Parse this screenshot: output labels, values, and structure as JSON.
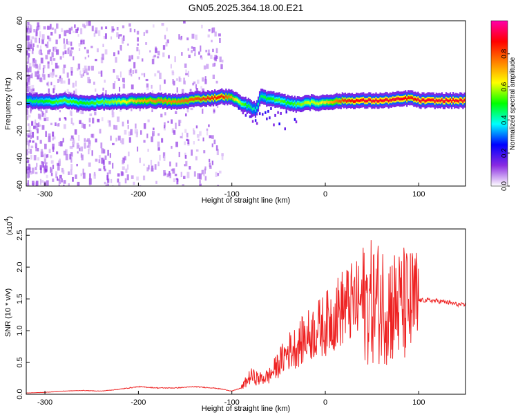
{
  "title": "GN05.2025.364.18.00.E21",
  "chart_data": [
    {
      "type": "heatmap",
      "xlabel": "Height of straight line (km)",
      "ylabel": "Frequency (Hz)",
      "xlim": [
        -320,
        150
      ],
      "ylim": [
        -60,
        60
      ],
      "x_ticks": [
        "-300",
        "-200",
        "-100",
        "0",
        "100"
      ],
      "y_ticks": [
        "60",
        "40",
        "20",
        "0",
        "-20",
        "-40",
        "-60"
      ],
      "colorbar": {
        "label": "Normalized spectral amplitude",
        "ticks": [
          "0.0",
          "0.2",
          "0.4",
          "0.6",
          "0.8"
        ],
        "range": [
          0,
          1
        ],
        "colors": [
          "#ffffff",
          "#8a2be2",
          "#0000ff",
          "#00ffff",
          "#00ff00",
          "#ffff00",
          "#ff8000",
          "#ff0000",
          "#ff00aa"
        ]
      },
      "ridge": {
        "x": [
          -320,
          -300,
          -280,
          -260,
          -240,
          -220,
          -200,
          -180,
          -160,
          -140,
          -120,
          -110,
          -100,
          -90,
          -80,
          -75,
          -70,
          -60,
          -50,
          -40,
          -30,
          -20,
          -10,
          0,
          20,
          40,
          60,
          80,
          90,
          100,
          120,
          150
        ],
        "freq": [
          2,
          1,
          2,
          0,
          1,
          1,
          2,
          2,
          1,
          3,
          4,
          5,
          4,
          0,
          -3,
          -5,
          5,
          3,
          2,
          0,
          -1,
          1,
          0,
          1,
          2,
          2,
          2,
          3,
          4,
          2,
          2,
          2
        ],
        "amp": [
          0.45,
          0.5,
          0.55,
          0.5,
          0.55,
          0.6,
          0.7,
          0.75,
          0.75,
          0.8,
          0.85,
          0.85,
          0.7,
          0.55,
          0.45,
          0.4,
          0.45,
          0.5,
          0.55,
          0.5,
          0.55,
          0.6,
          0.6,
          0.65,
          0.85,
          0.9,
          0.9,
          0.9,
          0.85,
          0.9,
          0.9,
          0.9
        ]
      }
    },
    {
      "type": "line",
      "xlabel": "Height of straight line (km)",
      "ylabel": "SNR (10 * v/v)",
      "scale_label": "(x10",
      "scale_exp": "4",
      "scale_close": ")",
      "xlim": [
        -320,
        150
      ],
      "ylim": [
        0,
        2.6
      ],
      "x_ticks": [
        "-300",
        "-200",
        "-100",
        "0",
        "100"
      ],
      "y_ticks": [
        "0.0",
        "0.5",
        "1.0",
        "1.5",
        "2.0",
        "2.5"
      ],
      "series": [
        {
          "color": "#ee2222",
          "x": [
            -320,
            -300,
            -280,
            -260,
            -240,
            -220,
            -200,
            -180,
            -160,
            -140,
            -120,
            -110,
            -100,
            -90,
            -80,
            -70,
            -60,
            -50,
            -40,
            -30,
            -20,
            -10,
            0,
            10,
            20,
            30,
            40,
            50,
            60,
            70,
            80,
            85,
            90,
            95,
            100,
            110,
            120,
            130,
            140,
            150
          ],
          "y": [
            0.02,
            0.03,
            0.05,
            0.06,
            0.05,
            0.08,
            0.12,
            0.1,
            0.1,
            0.12,
            0.1,
            0.08,
            0.05,
            0.1,
            0.3,
            0.25,
            0.3,
            0.5,
            0.7,
            0.8,
            0.95,
            1.05,
            1.15,
            1.3,
            1.45,
            1.5,
            1.52,
            1.55,
            1.55,
            1.5,
            1.45,
            1.5,
            1.45,
            1.5,
            1.48,
            1.48,
            1.47,
            1.45,
            1.42,
            1.4
          ]
        }
      ]
    }
  ]
}
